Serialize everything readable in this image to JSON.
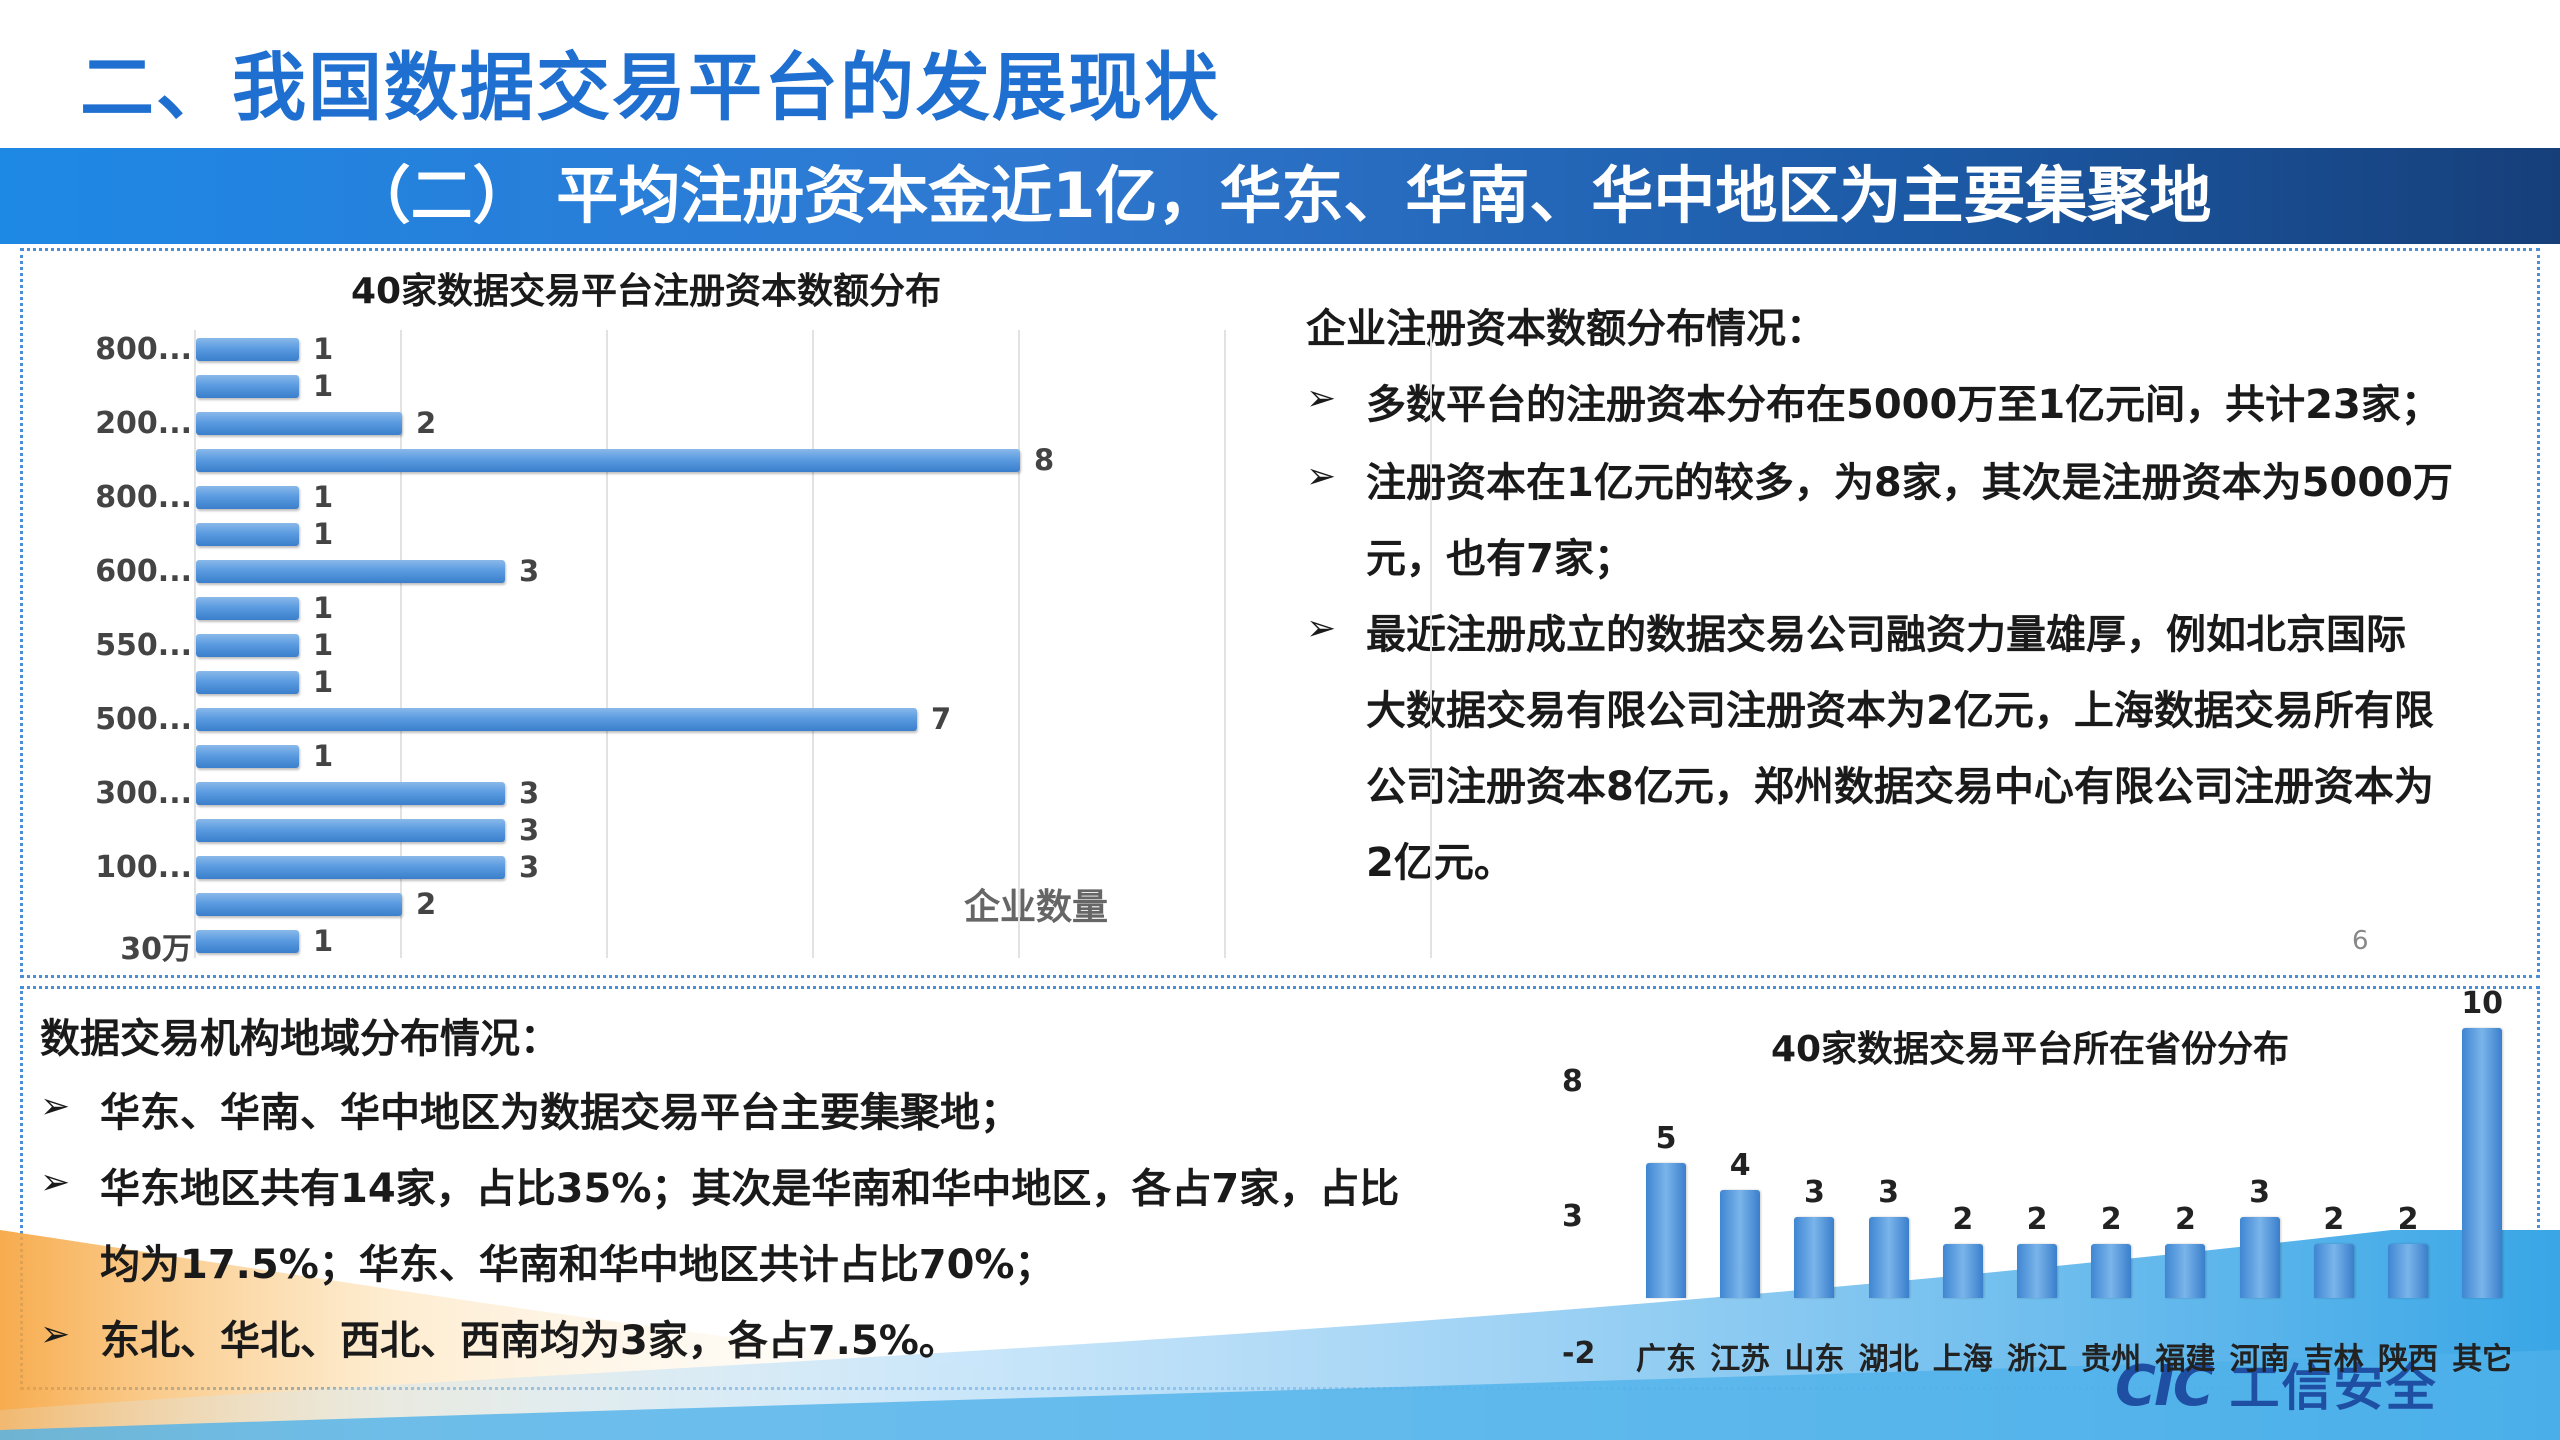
{
  "header": {
    "title": "二、我国数据交易平台的发展现状",
    "banner": "（二） 平均注册资本金近1亿，华东、华南、华中地区为主要集聚地"
  },
  "chart_data": [
    {
      "type": "bar",
      "orientation": "horizontal",
      "title": "40家数据交易平台注册资本数额分布",
      "xlabel": "企业数量",
      "ylabel": "",
      "tick_labels": [
        "800...",
        "200...",
        "800...",
        "600...",
        "550...",
        "500...",
        "300...",
        "100...",
        "30万"
      ],
      "values": [
        1,
        1,
        2,
        8,
        1,
        1,
        3,
        1,
        1,
        1,
        7,
        1,
        3,
        3,
        3,
        2,
        1
      ],
      "xlim": [
        0,
        10
      ],
      "grid": true
    },
    {
      "type": "bar",
      "title": "40家数据交易平台所在省份分布",
      "categories": [
        "广东",
        "江苏",
        "山东",
        "湖北",
        "上海",
        "浙江",
        "贵州",
        "福建",
        "河南",
        "吉林",
        "陕西",
        "其它"
      ],
      "values": [
        5,
        4,
        3,
        3,
        2,
        2,
        2,
        2,
        3,
        2,
        2,
        10
      ],
      "y_ticks": [
        "-2",
        "3",
        "8"
      ],
      "ylim": [
        -2,
        10
      ]
    }
  ],
  "right_text": {
    "heading": "企业注册资本数额分布情况：",
    "lines": [
      "多数平台的注册资本分布在5000万至1亿元间，共计23家；",
      "注册资本在1亿元的较多，为8家，其次是注册资本为5000万",
      "元，也有7家；",
      "最近注册成立的数据交易公司融资力量雄厚，例如北京国际",
      "大数据交易有限公司注册资本为2亿元，上海数据交易所有限",
      "公司注册资本8亿元，郑州数据交易中心有限公司注册资本为",
      "2亿元。"
    ]
  },
  "bottom_text": {
    "heading": "数据交易机构地域分布情况：",
    "lines": [
      "华东、华南、华中地区为数据交易平台主要集聚地；",
      "华东地区共有14家，占比35%；其次是华南和华中地区，各占7家，占比",
      "均为17.5%；华东、华南和华中地区共计占比70%；",
      "东北、华北、西北、西南均为3家，各占7.5%。"
    ]
  },
  "footer": {
    "page_number": "6",
    "logo_latin": "CIC",
    "logo_cn": "工信安全"
  },
  "icons": {
    "bullet": "arrow-bullet-icon",
    "logo": "cic-logo-icon"
  }
}
